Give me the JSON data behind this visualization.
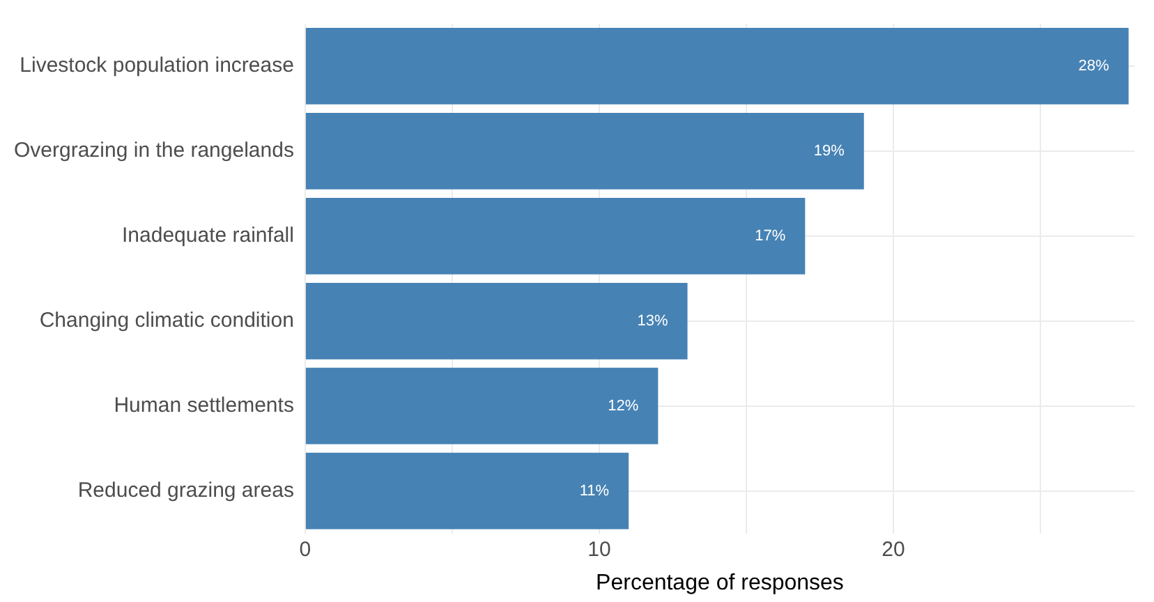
{
  "chart_data": {
    "type": "bar",
    "orientation": "horizontal",
    "xlabel": "Percentage of responses",
    "categories": [
      "Livestock population increase",
      "Overgrazing in the rangelands",
      "Inadequate rainfall",
      "Changing climatic condition",
      "Human settlements",
      "Reduced grazing areas"
    ],
    "values": [
      28,
      19,
      17,
      13,
      12,
      11
    ],
    "color": "#4682b4",
    "value_labels": [
      "28%",
      "19%",
      "17%",
      "13%",
      "12%",
      "11%"
    ],
    "xlim": [
      0,
      28.2
    ],
    "xticks": [
      0,
      {
        "value": 5,
        "label": null
      },
      10,
      {
        "value": 15,
        "label": null
      },
      20,
      {
        "value": 25,
        "label": null
      }
    ],
    "grid": true,
    "legend": false
  }
}
